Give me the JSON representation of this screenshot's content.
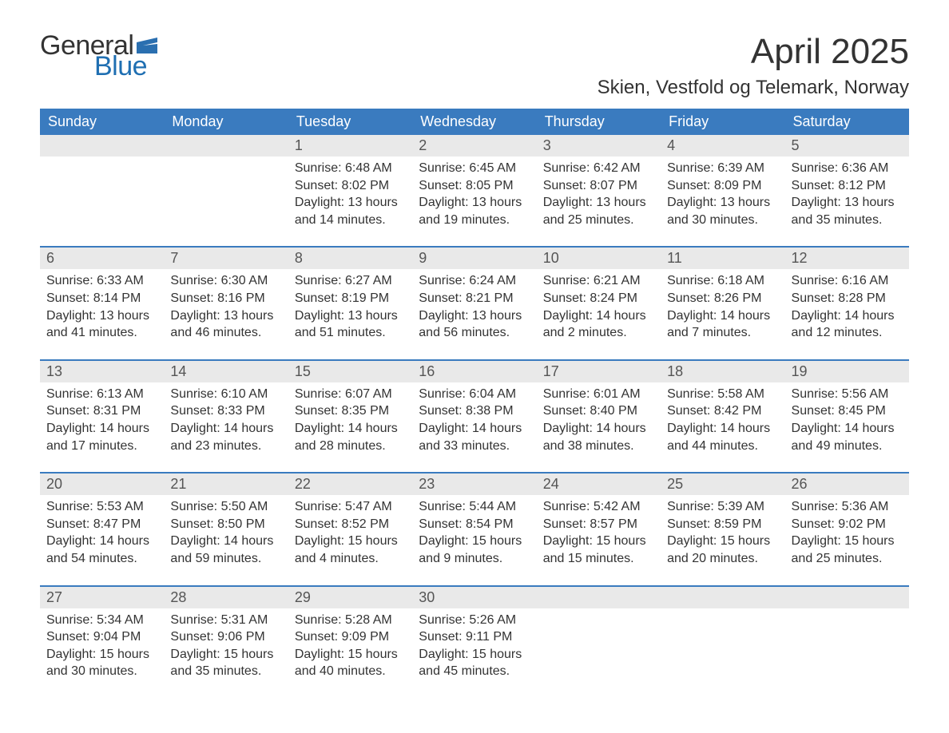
{
  "logo": {
    "general": "General",
    "blue": "Blue"
  },
  "colors": {
    "header_bg": "#3a7bbf",
    "header_text": "#ffffff",
    "daynum_bg": "#e9e9e9",
    "text": "#333333",
    "logo_blue": "#1f6fb2",
    "flag": "#2a6fb0"
  },
  "title": "April 2025",
  "location": "Skien, Vestfold og Telemark, Norway",
  "day_headers": [
    "Sunday",
    "Monday",
    "Tuesday",
    "Wednesday",
    "Thursday",
    "Friday",
    "Saturday"
  ],
  "weeks": [
    [
      {
        "n": "",
        "sr": "",
        "ss": "",
        "d1": "",
        "d2": ""
      },
      {
        "n": "",
        "sr": "",
        "ss": "",
        "d1": "",
        "d2": ""
      },
      {
        "n": "1",
        "sr": "Sunrise: 6:48 AM",
        "ss": "Sunset: 8:02 PM",
        "d1": "Daylight: 13 hours",
        "d2": "and 14 minutes."
      },
      {
        "n": "2",
        "sr": "Sunrise: 6:45 AM",
        "ss": "Sunset: 8:05 PM",
        "d1": "Daylight: 13 hours",
        "d2": "and 19 minutes."
      },
      {
        "n": "3",
        "sr": "Sunrise: 6:42 AM",
        "ss": "Sunset: 8:07 PM",
        "d1": "Daylight: 13 hours",
        "d2": "and 25 minutes."
      },
      {
        "n": "4",
        "sr": "Sunrise: 6:39 AM",
        "ss": "Sunset: 8:09 PM",
        "d1": "Daylight: 13 hours",
        "d2": "and 30 minutes."
      },
      {
        "n": "5",
        "sr": "Sunrise: 6:36 AM",
        "ss": "Sunset: 8:12 PM",
        "d1": "Daylight: 13 hours",
        "d2": "and 35 minutes."
      }
    ],
    [
      {
        "n": "6",
        "sr": "Sunrise: 6:33 AM",
        "ss": "Sunset: 8:14 PM",
        "d1": "Daylight: 13 hours",
        "d2": "and 41 minutes."
      },
      {
        "n": "7",
        "sr": "Sunrise: 6:30 AM",
        "ss": "Sunset: 8:16 PM",
        "d1": "Daylight: 13 hours",
        "d2": "and 46 minutes."
      },
      {
        "n": "8",
        "sr": "Sunrise: 6:27 AM",
        "ss": "Sunset: 8:19 PM",
        "d1": "Daylight: 13 hours",
        "d2": "and 51 minutes."
      },
      {
        "n": "9",
        "sr": "Sunrise: 6:24 AM",
        "ss": "Sunset: 8:21 PM",
        "d1": "Daylight: 13 hours",
        "d2": "and 56 minutes."
      },
      {
        "n": "10",
        "sr": "Sunrise: 6:21 AM",
        "ss": "Sunset: 8:24 PM",
        "d1": "Daylight: 14 hours",
        "d2": "and 2 minutes."
      },
      {
        "n": "11",
        "sr": "Sunrise: 6:18 AM",
        "ss": "Sunset: 8:26 PM",
        "d1": "Daylight: 14 hours",
        "d2": "and 7 minutes."
      },
      {
        "n": "12",
        "sr": "Sunrise: 6:16 AM",
        "ss": "Sunset: 8:28 PM",
        "d1": "Daylight: 14 hours",
        "d2": "and 12 minutes."
      }
    ],
    [
      {
        "n": "13",
        "sr": "Sunrise: 6:13 AM",
        "ss": "Sunset: 8:31 PM",
        "d1": "Daylight: 14 hours",
        "d2": "and 17 minutes."
      },
      {
        "n": "14",
        "sr": "Sunrise: 6:10 AM",
        "ss": "Sunset: 8:33 PM",
        "d1": "Daylight: 14 hours",
        "d2": "and 23 minutes."
      },
      {
        "n": "15",
        "sr": "Sunrise: 6:07 AM",
        "ss": "Sunset: 8:35 PM",
        "d1": "Daylight: 14 hours",
        "d2": "and 28 minutes."
      },
      {
        "n": "16",
        "sr": "Sunrise: 6:04 AM",
        "ss": "Sunset: 8:38 PM",
        "d1": "Daylight: 14 hours",
        "d2": "and 33 minutes."
      },
      {
        "n": "17",
        "sr": "Sunrise: 6:01 AM",
        "ss": "Sunset: 8:40 PM",
        "d1": "Daylight: 14 hours",
        "d2": "and 38 minutes."
      },
      {
        "n": "18",
        "sr": "Sunrise: 5:58 AM",
        "ss": "Sunset: 8:42 PM",
        "d1": "Daylight: 14 hours",
        "d2": "and 44 minutes."
      },
      {
        "n": "19",
        "sr": "Sunrise: 5:56 AM",
        "ss": "Sunset: 8:45 PM",
        "d1": "Daylight: 14 hours",
        "d2": "and 49 minutes."
      }
    ],
    [
      {
        "n": "20",
        "sr": "Sunrise: 5:53 AM",
        "ss": "Sunset: 8:47 PM",
        "d1": "Daylight: 14 hours",
        "d2": "and 54 minutes."
      },
      {
        "n": "21",
        "sr": "Sunrise: 5:50 AM",
        "ss": "Sunset: 8:50 PM",
        "d1": "Daylight: 14 hours",
        "d2": "and 59 minutes."
      },
      {
        "n": "22",
        "sr": "Sunrise: 5:47 AM",
        "ss": "Sunset: 8:52 PM",
        "d1": "Daylight: 15 hours",
        "d2": "and 4 minutes."
      },
      {
        "n": "23",
        "sr": "Sunrise: 5:44 AM",
        "ss": "Sunset: 8:54 PM",
        "d1": "Daylight: 15 hours",
        "d2": "and 9 minutes."
      },
      {
        "n": "24",
        "sr": "Sunrise: 5:42 AM",
        "ss": "Sunset: 8:57 PM",
        "d1": "Daylight: 15 hours",
        "d2": "and 15 minutes."
      },
      {
        "n": "25",
        "sr": "Sunrise: 5:39 AM",
        "ss": "Sunset: 8:59 PM",
        "d1": "Daylight: 15 hours",
        "d2": "and 20 minutes."
      },
      {
        "n": "26",
        "sr": "Sunrise: 5:36 AM",
        "ss": "Sunset: 9:02 PM",
        "d1": "Daylight: 15 hours",
        "d2": "and 25 minutes."
      }
    ],
    [
      {
        "n": "27",
        "sr": "Sunrise: 5:34 AM",
        "ss": "Sunset: 9:04 PM",
        "d1": "Daylight: 15 hours",
        "d2": "and 30 minutes."
      },
      {
        "n": "28",
        "sr": "Sunrise: 5:31 AM",
        "ss": "Sunset: 9:06 PM",
        "d1": "Daylight: 15 hours",
        "d2": "and 35 minutes."
      },
      {
        "n": "29",
        "sr": "Sunrise: 5:28 AM",
        "ss": "Sunset: 9:09 PM",
        "d1": "Daylight: 15 hours",
        "d2": "and 40 minutes."
      },
      {
        "n": "30",
        "sr": "Sunrise: 5:26 AM",
        "ss": "Sunset: 9:11 PM",
        "d1": "Daylight: 15 hours",
        "d2": "and 45 minutes."
      },
      {
        "n": "",
        "sr": "",
        "ss": "",
        "d1": "",
        "d2": ""
      },
      {
        "n": "",
        "sr": "",
        "ss": "",
        "d1": "",
        "d2": ""
      },
      {
        "n": "",
        "sr": "",
        "ss": "",
        "d1": "",
        "d2": ""
      }
    ]
  ]
}
